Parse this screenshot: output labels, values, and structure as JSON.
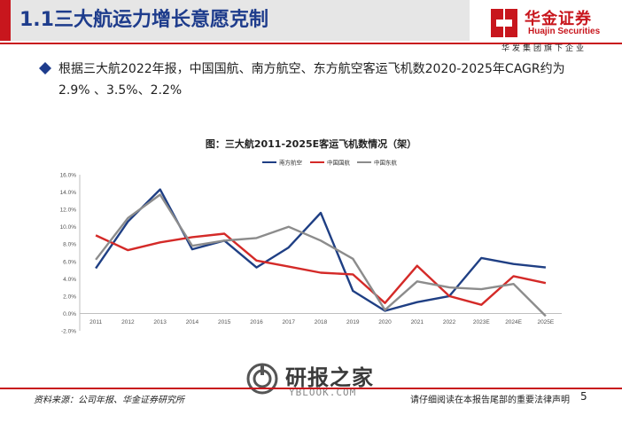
{
  "header": {
    "title": "1.1三大航运力增长意愿克制",
    "logo_name": "华金证券",
    "logo_en": "Huajin Securities",
    "logo_slogan": "华发集团旗下企业"
  },
  "bullet": {
    "icon": "diamond-icon",
    "text": "根据三大航2022年报，中国国航、南方航空、东方航空客运飞机数2020-2025年CAGR约为2.9% 、3.5%、2.2%"
  },
  "chart_data": {
    "type": "line",
    "title": "图：三大航2011-2025E客运飞机数情况（架）",
    "categories": [
      "2011",
      "2012",
      "2013",
      "2014",
      "2015",
      "2016",
      "2017",
      "2018",
      "2019",
      "2020",
      "2021",
      "2022",
      "2023E",
      "2024E",
      "2025E"
    ],
    "y_ticks": [
      "-2.0%",
      "0.0%",
      "2.0%",
      "4.0%",
      "6.0%",
      "8.0%",
      "10.0%",
      "12.0%",
      "14.0%",
      "16.0%"
    ],
    "ylim": [
      -2,
      16
    ],
    "legend_position": "top-right",
    "grid": false,
    "series": [
      {
        "name": "南方航空",
        "color": "#1f3f84",
        "values": [
          5.2,
          10.6,
          14.3,
          7.4,
          8.4,
          5.3,
          7.6,
          11.6,
          2.6,
          0.3,
          1.3,
          2.0,
          6.4,
          5.7,
          5.3
        ]
      },
      {
        "name": "中国国航",
        "color": "#d42a28",
        "values": [
          9.0,
          7.3,
          8.2,
          8.8,
          9.2,
          6.1,
          5.4,
          4.7,
          4.5,
          1.2,
          5.5,
          2.0,
          1.0,
          4.3,
          3.5
        ]
      },
      {
        "name": "中国东航",
        "color": "#8c8c8c",
        "values": [
          6.2,
          11.0,
          13.7,
          7.8,
          8.4,
          8.7,
          10.0,
          8.4,
          6.3,
          0.4,
          3.7,
          3.0,
          2.8,
          3.4,
          -0.3
        ]
      }
    ]
  },
  "footer": {
    "source": "资料来源：公司年报、华金证券研究所",
    "disclaimer": "请仔细阅读在本报告尾部的重要法律声明",
    "page": "5"
  },
  "watermark": {
    "text": "研报之家",
    "url": "YBLOOK.COM"
  }
}
